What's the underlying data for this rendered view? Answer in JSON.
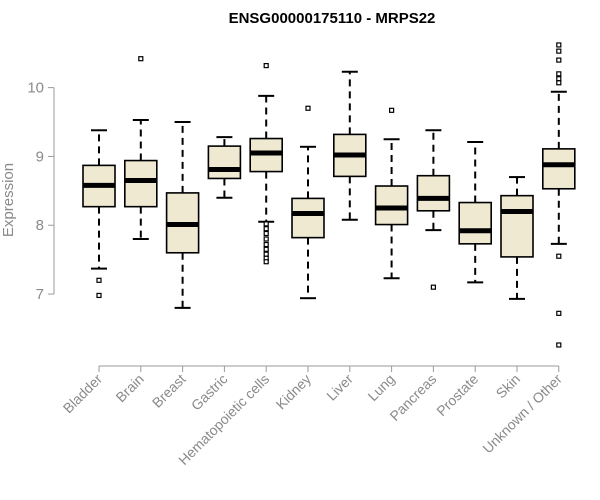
{
  "chart_data": {
    "type": "box",
    "title": "ENSG00000175110 - MRPS22",
    "xlabel": "",
    "ylabel": "Expression",
    "ylim": [
      6.1,
      10.75
    ],
    "yticks": [
      7,
      8,
      9,
      10
    ],
    "grid": false,
    "box_fill": "#efe9d2",
    "categories": [
      "Bladder",
      "Brain",
      "Breast",
      "Gastric",
      "Hematopoietic cells",
      "Kidney",
      "Liver",
      "Lung",
      "Pancreas",
      "Prostate",
      "Skin",
      "Unknown / Other"
    ],
    "boxes": [
      {
        "name": "Bladder",
        "whisker_low": 7.37,
        "q1": 8.27,
        "median": 8.58,
        "q3": 8.87,
        "whisker_high": 9.38,
        "outliers": [
          7.2,
          6.98
        ]
      },
      {
        "name": "Brain",
        "whisker_low": 7.8,
        "q1": 8.27,
        "median": 8.65,
        "q3": 8.94,
        "whisker_high": 9.53,
        "outliers": [
          10.42
        ]
      },
      {
        "name": "Breast",
        "whisker_low": 6.8,
        "q1": 7.6,
        "median": 8.01,
        "q3": 8.47,
        "whisker_high": 9.5,
        "outliers": []
      },
      {
        "name": "Gastric",
        "whisker_low": 8.4,
        "q1": 8.68,
        "median": 8.81,
        "q3": 9.15,
        "whisker_high": 9.28,
        "outliers": []
      },
      {
        "name": "Hematopoietic cells",
        "whisker_low": 8.05,
        "q1": 8.78,
        "median": 9.05,
        "q3": 9.26,
        "whisker_high": 9.88,
        "outliers": [
          10.32,
          8.02,
          7.95,
          7.88,
          7.8,
          7.72,
          7.65,
          7.58,
          7.52,
          7.47
        ]
      },
      {
        "name": "Kidney",
        "whisker_low": 6.94,
        "q1": 7.82,
        "median": 8.17,
        "q3": 8.39,
        "whisker_high": 9.14,
        "outliers": [
          9.7
        ]
      },
      {
        "name": "Liver",
        "whisker_low": 8.08,
        "q1": 8.71,
        "median": 9.02,
        "q3": 9.32,
        "whisker_high": 10.23,
        "outliers": []
      },
      {
        "name": "Lung",
        "whisker_low": 7.23,
        "q1": 8.01,
        "median": 8.25,
        "q3": 8.57,
        "whisker_high": 9.25,
        "outliers": [
          9.67
        ]
      },
      {
        "name": "Pancreas",
        "whisker_low": 7.93,
        "q1": 8.21,
        "median": 8.39,
        "q3": 8.72,
        "whisker_high": 9.38,
        "outliers": [
          7.1
        ]
      },
      {
        "name": "Prostate",
        "whisker_low": 7.17,
        "q1": 7.73,
        "median": 7.92,
        "q3": 8.33,
        "whisker_high": 9.21,
        "outliers": []
      },
      {
        "name": "Skin",
        "whisker_low": 6.93,
        "q1": 7.54,
        "median": 8.2,
        "q3": 8.43,
        "whisker_high": 8.7,
        "outliers": []
      },
      {
        "name": "Unknown / Other",
        "whisker_low": 7.73,
        "q1": 8.53,
        "median": 8.88,
        "q3": 9.11,
        "whisker_high": 9.94,
        "outliers": [
          10.62,
          10.53,
          10.4,
          10.2,
          10.13,
          10.07,
          7.55,
          6.72,
          6.26
        ]
      }
    ]
  }
}
